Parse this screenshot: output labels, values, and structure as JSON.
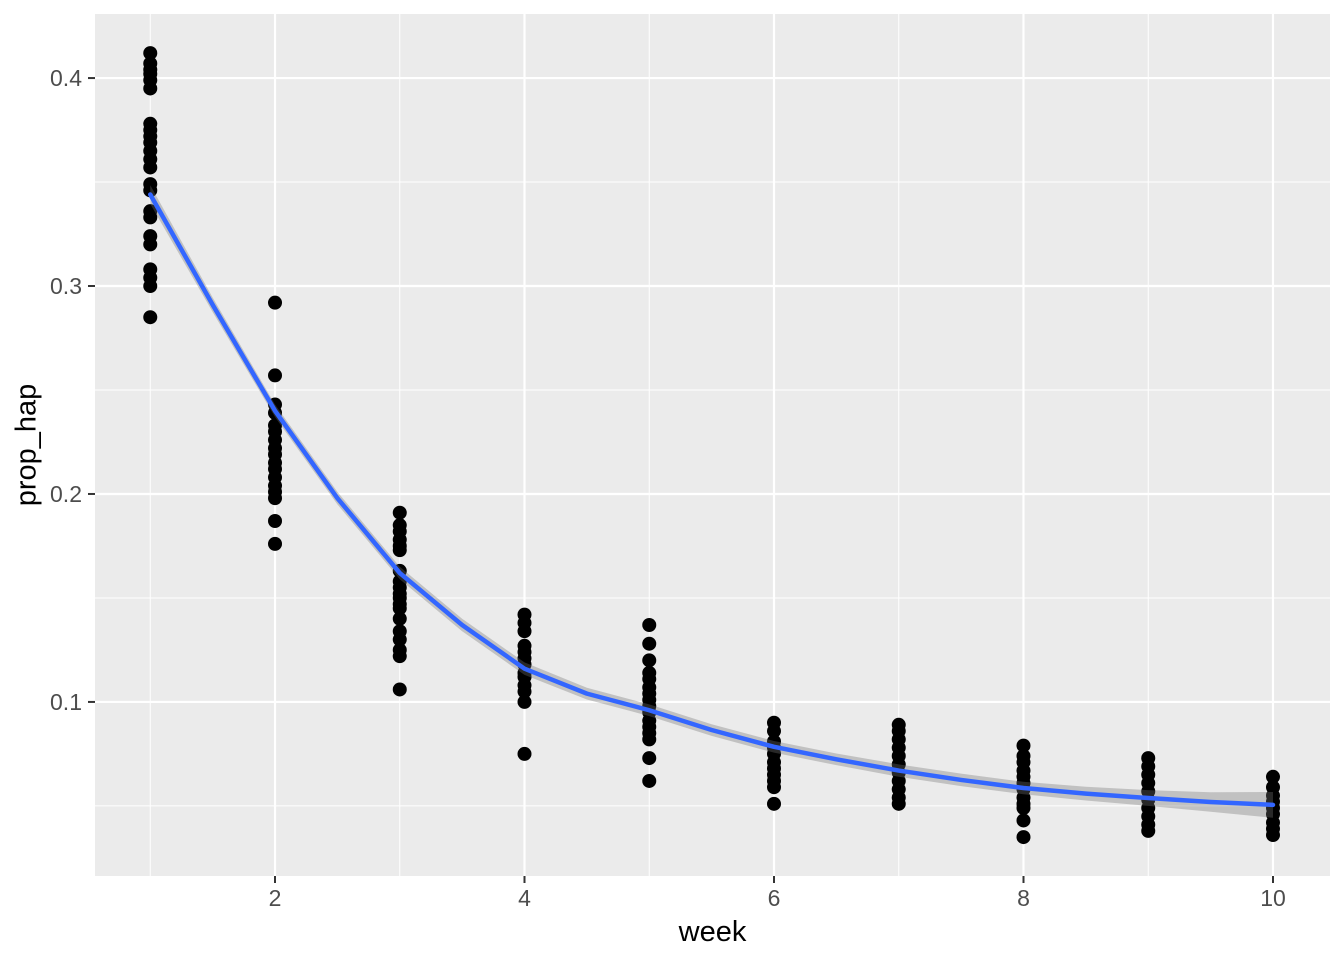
{
  "chart_data": {
    "type": "scatter",
    "title": "",
    "xlabel": "week",
    "ylabel": "prop_hap",
    "xlim": [
      0.557,
      10.457
    ],
    "ylim": [
      0.0163,
      0.4308
    ],
    "grid": true,
    "legend": "none",
    "x_major_ticks": [
      2,
      4,
      6,
      8,
      10
    ],
    "x_tick_labels": [
      "2",
      "4",
      "6",
      "8",
      "10"
    ],
    "x_minor_gridlines": [
      1,
      3,
      5,
      7,
      9
    ],
    "y_major_ticks": [
      0.1,
      0.2,
      0.3,
      0.4
    ],
    "y_tick_labels": [
      "0.1",
      "0.2",
      "0.3",
      "0.4"
    ],
    "y_minor_gridlines": [
      0.05,
      0.15,
      0.25,
      0.35
    ],
    "series": [
      {
        "name": "observations",
        "type": "scatter",
        "color": "#000000",
        "groups": [
          {
            "week": 1,
            "values": [
              0.412,
              0.407,
              0.404,
              0.402,
              0.399,
              0.395,
              0.378,
              0.375,
              0.372,
              0.369,
              0.365,
              0.361,
              0.357,
              0.349,
              0.346,
              0.336,
              0.333,
              0.324,
              0.32,
              0.308,
              0.304,
              0.3,
              0.285
            ]
          },
          {
            "week": 2,
            "values": [
              0.292,
              0.257,
              0.243,
              0.239,
              0.233,
              0.23,
              0.226,
              0.222,
              0.219,
              0.215,
              0.212,
              0.208,
              0.204,
              0.201,
              0.198,
              0.187,
              0.176
            ]
          },
          {
            "week": 3,
            "values": [
              0.191,
              0.185,
              0.182,
              0.178,
              0.175,
              0.173,
              0.163,
              0.158,
              0.155,
              0.152,
              0.15,
              0.147,
              0.145,
              0.14,
              0.134,
              0.13,
              0.125,
              0.122,
              0.106
            ]
          },
          {
            "week": 4,
            "values": [
              0.142,
              0.138,
              0.134,
              0.127,
              0.124,
              0.121,
              0.118,
              0.114,
              0.112,
              0.108,
              0.105,
              0.1,
              0.075
            ]
          },
          {
            "week": 5,
            "values": [
              0.137,
              0.128,
              0.12,
              0.114,
              0.111,
              0.107,
              0.104,
              0.101,
              0.098,
              0.095,
              0.091,
              0.088,
              0.085,
              0.082,
              0.073,
              0.062
            ]
          },
          {
            "week": 6,
            "values": [
              0.09,
              0.086,
              0.081,
              0.078,
              0.075,
              0.071,
              0.068,
              0.065,
              0.062,
              0.059,
              0.051
            ]
          },
          {
            "week": 7,
            "values": [
              0.089,
              0.086,
              0.082,
              0.078,
              0.074,
              0.07,
              0.066,
              0.062,
              0.058,
              0.054,
              0.051
            ]
          },
          {
            "week": 8,
            "values": [
              0.079,
              0.074,
              0.071,
              0.067,
              0.064,
              0.061,
              0.058,
              0.054,
              0.051,
              0.049,
              0.043,
              0.035
            ]
          },
          {
            "week": 9,
            "values": [
              0.073,
              0.069,
              0.065,
              0.061,
              0.057,
              0.053,
              0.049,
              0.045,
              0.041,
              0.038
            ]
          },
          {
            "week": 10,
            "values": [
              0.064,
              0.059,
              0.055,
              0.052,
              0.049,
              0.046,
              0.042,
              0.039,
              0.036
            ]
          }
        ]
      },
      {
        "name": "loess-smooth",
        "type": "line",
        "color": "#3366FF",
        "ci_color": "rgba(115, 115, 115, 0.35)",
        "x": [
          1,
          1.5,
          2,
          2.5,
          3,
          3.5,
          4,
          4.5,
          5,
          5.5,
          6,
          6.5,
          7,
          7.5,
          8,
          8.5,
          9,
          9.5,
          10
        ],
        "y": [
          0.344,
          0.291,
          0.24,
          0.198,
          0.162,
          0.137,
          0.116,
          0.104,
          0.096,
          0.0865,
          0.0784,
          0.0724,
          0.067,
          0.0625,
          0.0586,
          0.0559,
          0.0538,
          0.0519,
          0.0505
        ],
        "ci_upper": [
          0.3485,
          0.2945,
          0.243,
          0.201,
          0.165,
          0.14,
          0.119,
          0.1068,
          0.0988,
          0.0893,
          0.0812,
          0.0752,
          0.07,
          0.0655,
          0.0616,
          0.0592,
          0.0576,
          0.0566,
          0.0567
        ],
        "ci_lower": [
          0.3395,
          0.2875,
          0.237,
          0.195,
          0.159,
          0.134,
          0.113,
          0.1012,
          0.0932,
          0.0837,
          0.0756,
          0.0696,
          0.064,
          0.0595,
          0.0556,
          0.0526,
          0.05,
          0.0472,
          0.0443
        ]
      }
    ],
    "style": {
      "background": "#FFFFFF",
      "panel_bg": "#EBEBEB",
      "grid_color": "#FFFFFF",
      "tick_color": "#333333",
      "tick_label_color": "#4D4D4D",
      "axis_title_color": "#000000",
      "point_radius": 7,
      "line_width": 4.5
    }
  }
}
